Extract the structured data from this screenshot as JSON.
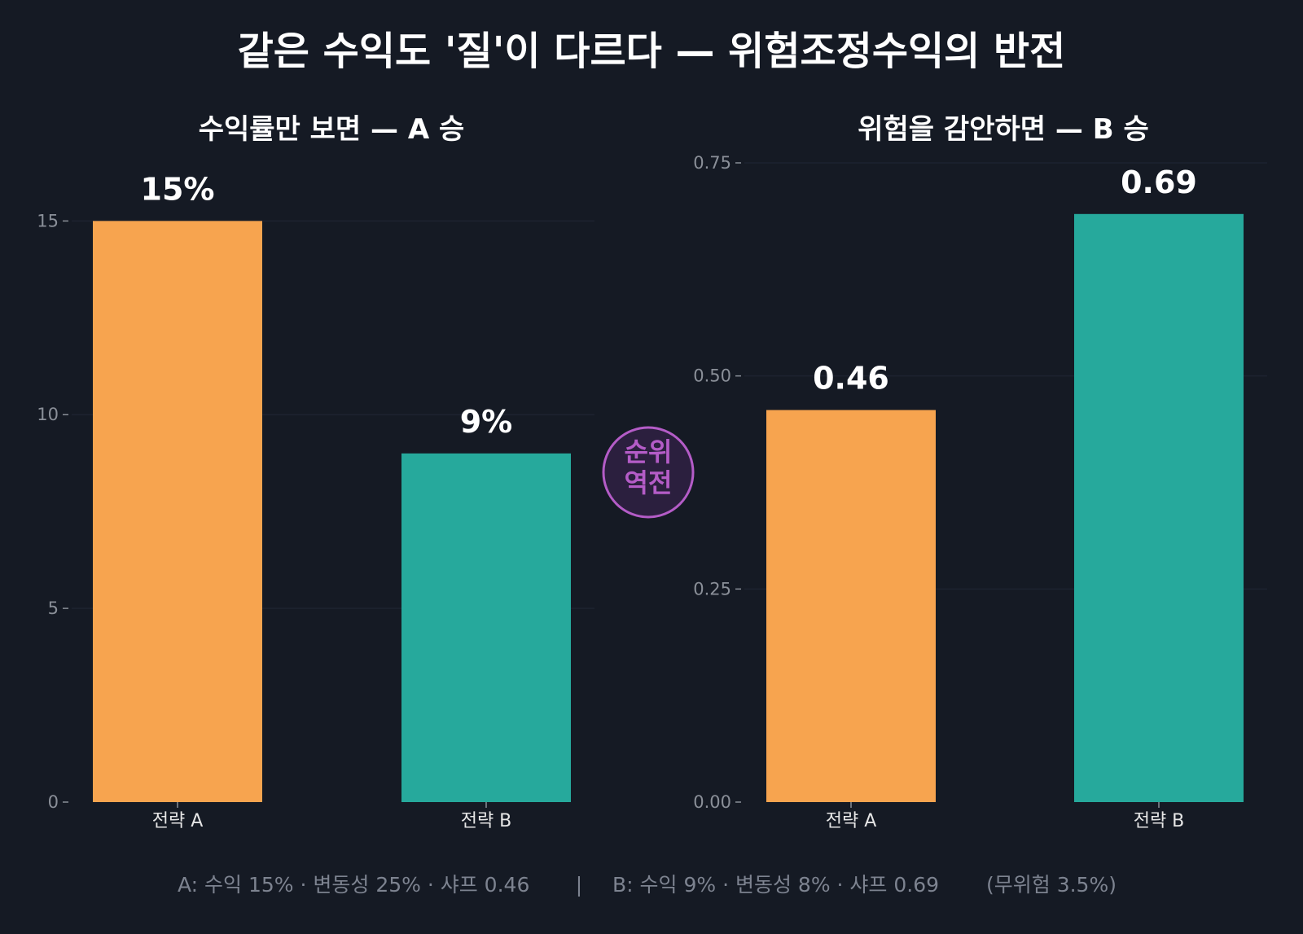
{
  "title": "같은 수익도 '질'이 다르다 — 위험조정수익의 반전",
  "badge": {
    "line1": "순위",
    "line2": "역전",
    "color": "#b45cc7"
  },
  "footer": {
    "a_text": "A: 수익 15% · 변동성 25% · 샤프 0.46",
    "separator": "|",
    "b_text": "B: 수익 9% · 변동성 8% · 샤프 0.69",
    "note": "(무위험 3.5%)"
  },
  "colors": {
    "background": "#151a24",
    "strategy_a": "#f7a44f",
    "strategy_b": "#26a99c",
    "grid": "#1d2330",
    "tick": "#8a8f98"
  },
  "chart_data": [
    {
      "type": "bar",
      "title": "수익률만 보면 — A 승",
      "categories": [
        "전략 A",
        "전략 B"
      ],
      "values": [
        15,
        9
      ],
      "value_labels": [
        "15%",
        "9%"
      ],
      "ylim": [
        0,
        16.5
      ],
      "yticks": [
        0,
        5,
        10,
        15
      ],
      "ytick_labels": [
        "0",
        "5",
        "10",
        "15"
      ],
      "grid": true,
      "xlabel": "",
      "ylabel": ""
    },
    {
      "type": "bar",
      "title": "위험을 감안하면 — B 승",
      "categories": [
        "전략 A",
        "전략 B"
      ],
      "values": [
        0.46,
        0.69
      ],
      "value_labels": [
        "0.46",
        "0.69"
      ],
      "ylim": [
        0,
        0.75
      ],
      "yticks": [
        0,
        0.25,
        0.5,
        0.75
      ],
      "ytick_labels": [
        "0.00",
        "0.25",
        "0.50",
        "0.75"
      ],
      "grid": true,
      "xlabel": "",
      "ylabel": ""
    }
  ]
}
